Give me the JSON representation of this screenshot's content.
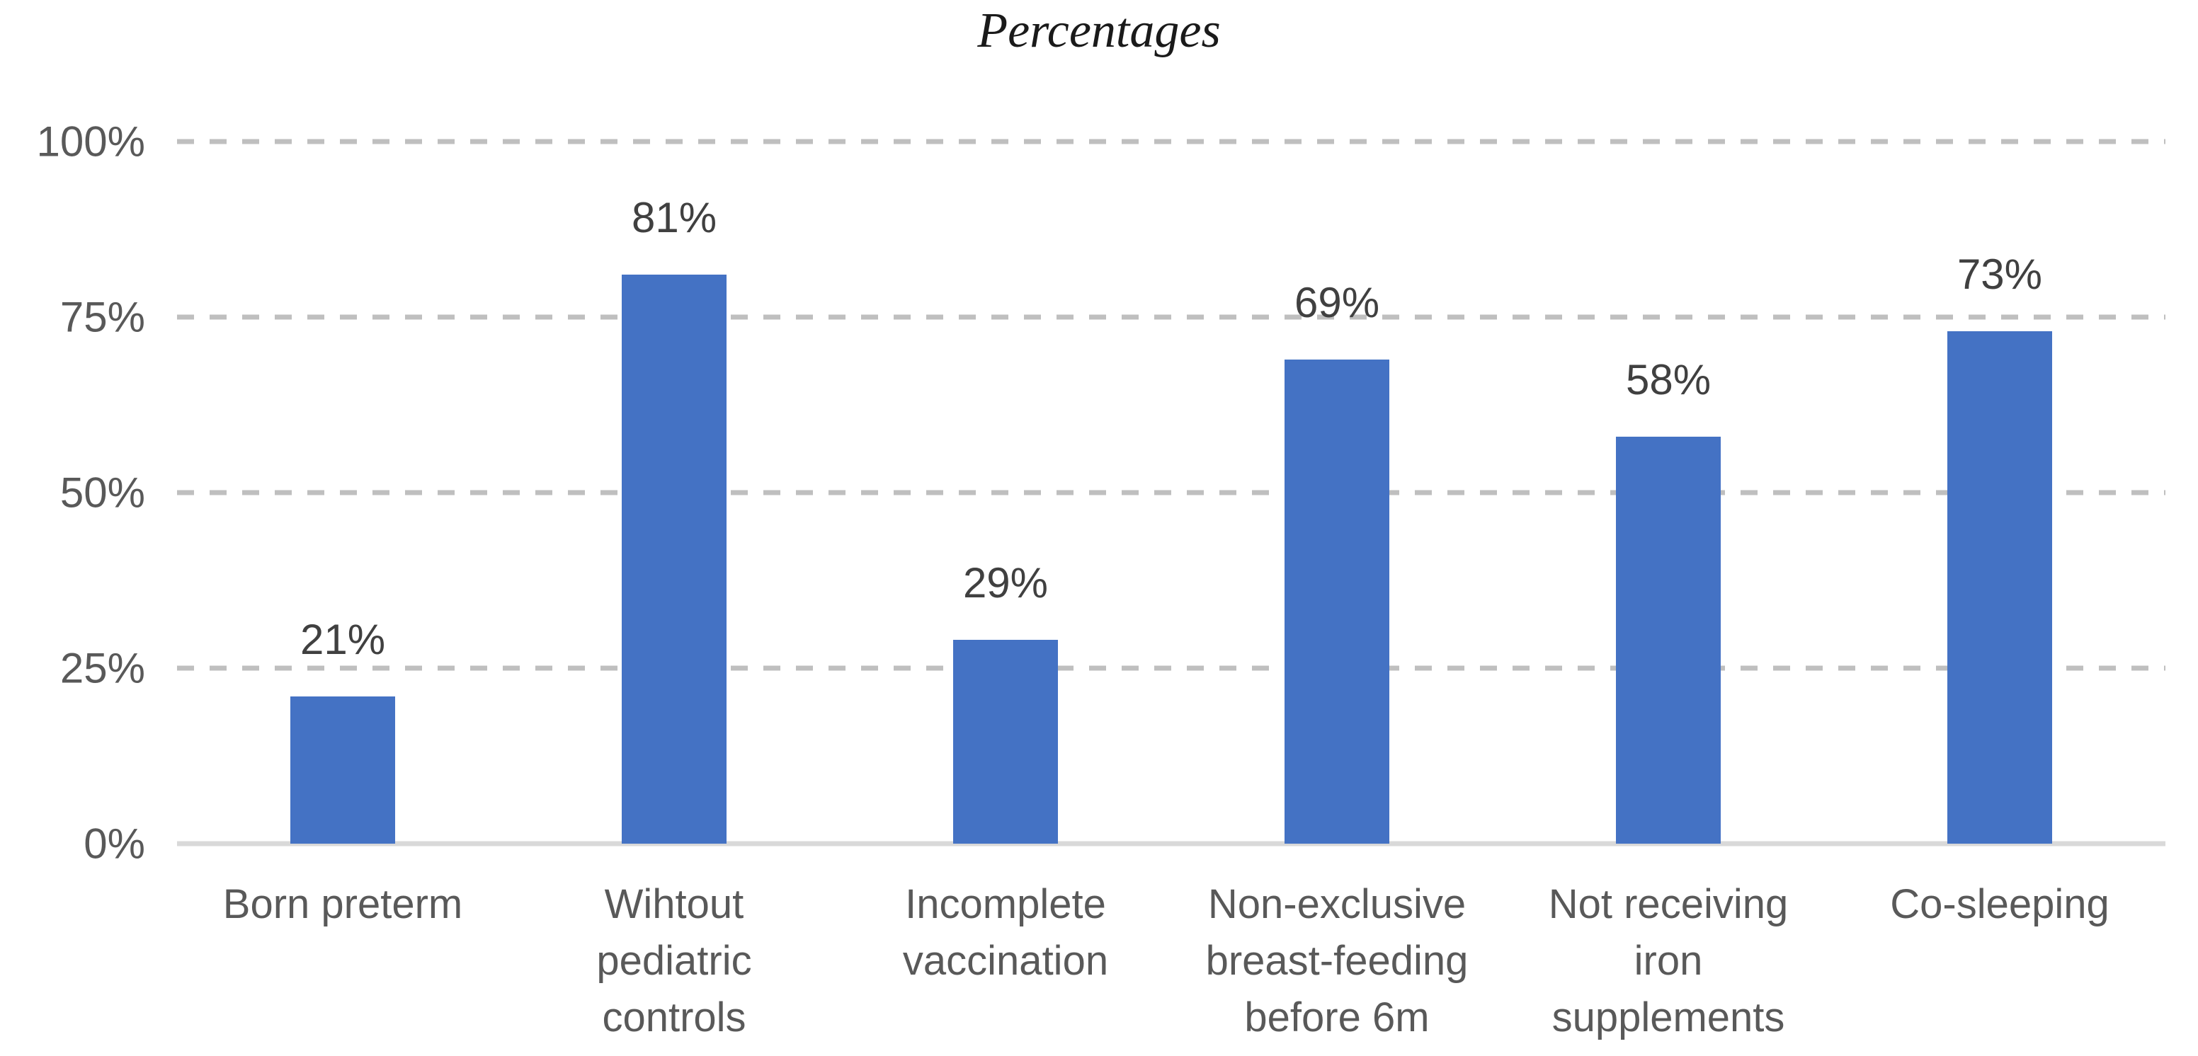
{
  "chart_data": {
    "type": "bar",
    "title": "Percentages",
    "categories": [
      "Born preterm",
      "Wihtout pediatric controls",
      "Incomplete vaccination",
      "Non-exclusive breast-feeding before 6m",
      "Not receiving iron supplements",
      "Co-sleeping"
    ],
    "x_tick_display": [
      "Born preterm",
      "Wihtout\npediatric\ncontrols",
      "Incomplete\nvaccination",
      "Non-exclusive\nbreast-feeding\nbefore 6m",
      "Not receiving\niron\nsupplements",
      "Co-sleeping"
    ],
    "values": [
      21,
      81,
      29,
      69,
      58,
      73
    ],
    "value_labels": [
      "21%",
      "81%",
      "29%",
      "69%",
      "58%",
      "73%"
    ],
    "y_ticks": [
      {
        "value": 100,
        "label": "100%"
      },
      {
        "value": 75,
        "label": "75%"
      },
      {
        "value": 50,
        "label": "50%"
      },
      {
        "value": 25,
        "label": "25%"
      },
      {
        "value": 0,
        "label": "0%"
      }
    ],
    "ylim": [
      0,
      100
    ],
    "xlabel": "",
    "ylabel": "",
    "grid": "horizontal-dashed",
    "legend": "none",
    "colors": {
      "bar": "#4472C4",
      "gridline": "#BFBFBF",
      "axis_line": "#D9D9D9",
      "tick_label": "#595959",
      "value_label": "#404040",
      "title": "#1a1a1a"
    }
  }
}
